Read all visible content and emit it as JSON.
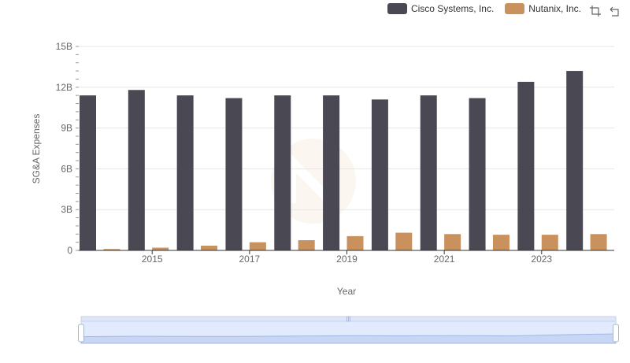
{
  "legend": [
    {
      "label": "Cisco Systems, Inc.",
      "color": "#4a4953"
    },
    {
      "label": "Nutanix, Inc.",
      "color": "#c9915d"
    }
  ],
  "toolbar": {
    "zoom_icon": "data-zoom-icon",
    "restore_icon": "restore-icon"
  },
  "chart_data": {
    "type": "bar",
    "categories": [
      "2014",
      "2015",
      "2016",
      "2017",
      "2018",
      "2019",
      "2020",
      "2021",
      "2022",
      "2023",
      "2024"
    ],
    "x_tick_labels": [
      "2015",
      "2017",
      "2019",
      "2021",
      "2023"
    ],
    "series": [
      {
        "name": "Cisco Systems, Inc.",
        "color": "#4a4953",
        "values": [
          11.4,
          11.8,
          11.4,
          11.2,
          11.4,
          11.4,
          11.1,
          11.4,
          11.2,
          12.4,
          13.2
        ]
      },
      {
        "name": "Nutanix, Inc.",
        "color": "#c9915d",
        "values": [
          0.1,
          0.2,
          0.35,
          0.6,
          0.75,
          1.05,
          1.3,
          1.2,
          1.15,
          1.15,
          1.2
        ]
      }
    ],
    "xlabel": "Year",
    "ylabel": "SG&A Expenses",
    "ylim": [
      0,
      15
    ],
    "y_ticks": [
      0,
      3,
      6,
      9,
      12,
      15
    ],
    "y_tick_labels": [
      "0",
      "3B",
      "6B",
      "9B",
      "12B",
      "15B"
    ],
    "grid": true,
    "legend_position": "top-right",
    "data_zoom": {
      "start": 0,
      "end": 100
    }
  }
}
